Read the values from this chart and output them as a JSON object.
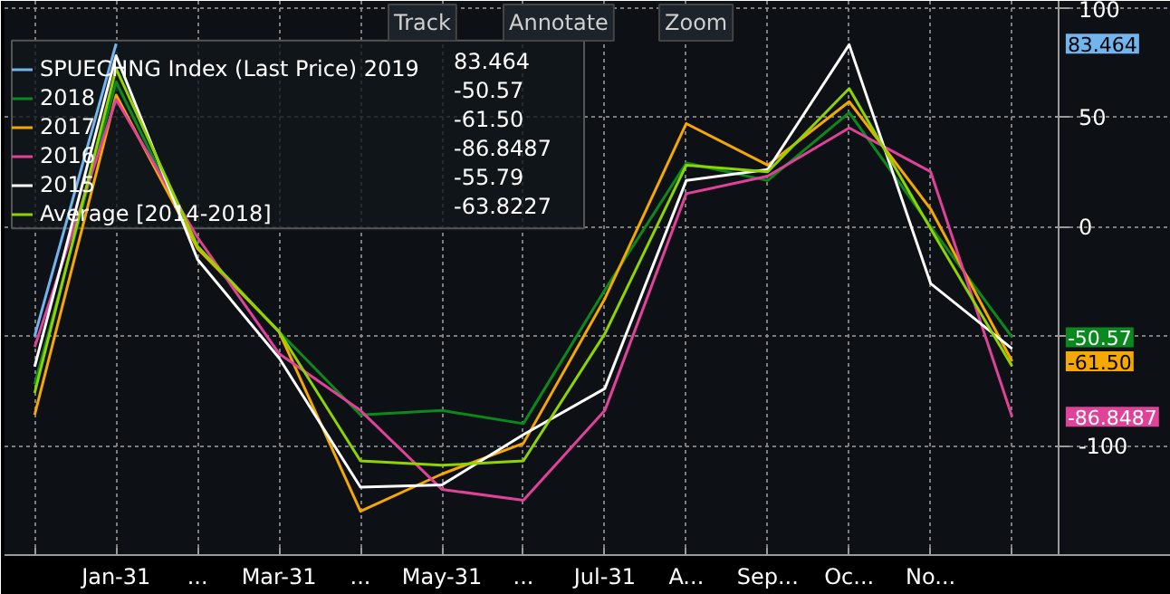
{
  "chart_data": {
    "type": "line",
    "categories": [
      null,
      "Jan-31",
      "...",
      "Mar-31",
      "...",
      "May-31",
      "...",
      "Jul-31",
      "A...",
      "Sep...",
      "Oc...",
      "No...",
      null
    ],
    "series": [
      {
        "name": "SPUECHNG Index (Last Price) 2019",
        "color": "#72b4ee",
        "values": [
          -50,
          83.464,
          null,
          null,
          null,
          null,
          null,
          null,
          null,
          null,
          null,
          null,
          null
        ]
      },
      {
        "name": "2018",
        "color": "#0a8a1e",
        "values": [
          -72,
          66,
          -10,
          -48,
          -86,
          -84,
          -90,
          -29,
          29,
          21,
          52,
          0,
          -50.57
        ]
      },
      {
        "name": "2017",
        "color": "#f5a800",
        "values": [
          -86,
          60,
          -10,
          -48,
          -130,
          -113,
          -99,
          -33,
          47,
          28,
          57,
          8,
          -61.5
        ]
      },
      {
        "name": "2016",
        "color": "#e0429a",
        "values": [
          -55,
          58,
          -5,
          -58,
          -84,
          -120,
          -125,
          -84,
          15,
          23,
          45,
          25,
          -86.8487
        ]
      },
      {
        "name": "2015",
        "color": "#ffffff",
        "values": [
          -64,
          78,
          -15,
          -60,
          -119,
          -118,
          -95,
          -74,
          21,
          26,
          83,
          -26,
          -55.79
        ]
      },
      {
        "name": "Average [2014-2018]",
        "color": "#8fd400",
        "values": [
          -76,
          72,
          -9,
          -48,
          -107,
          -109,
          -107,
          -49,
          28,
          25,
          63,
          -1,
          -63.8227
        ]
      }
    ],
    "ylim": [
      -150,
      103
    ],
    "yticks": [
      {
        "value": -150,
        "label": null
      },
      -100,
      {
        "value": -50,
        "label": null
      },
      0,
      50,
      100
    ],
    "grid": true,
    "legend": "top left",
    "line_style": "solid",
    "marker": "none",
    "annotations": [
      "Track",
      "Annotate",
      "Zoom",
      "83.464",
      "-50.57",
      "-61.50",
      "-86.8487",
      "-55.79",
      "-63.8227",
      "83.464",
      "-50.57",
      "-61.50",
      "-86.8487"
    ]
  }
}
